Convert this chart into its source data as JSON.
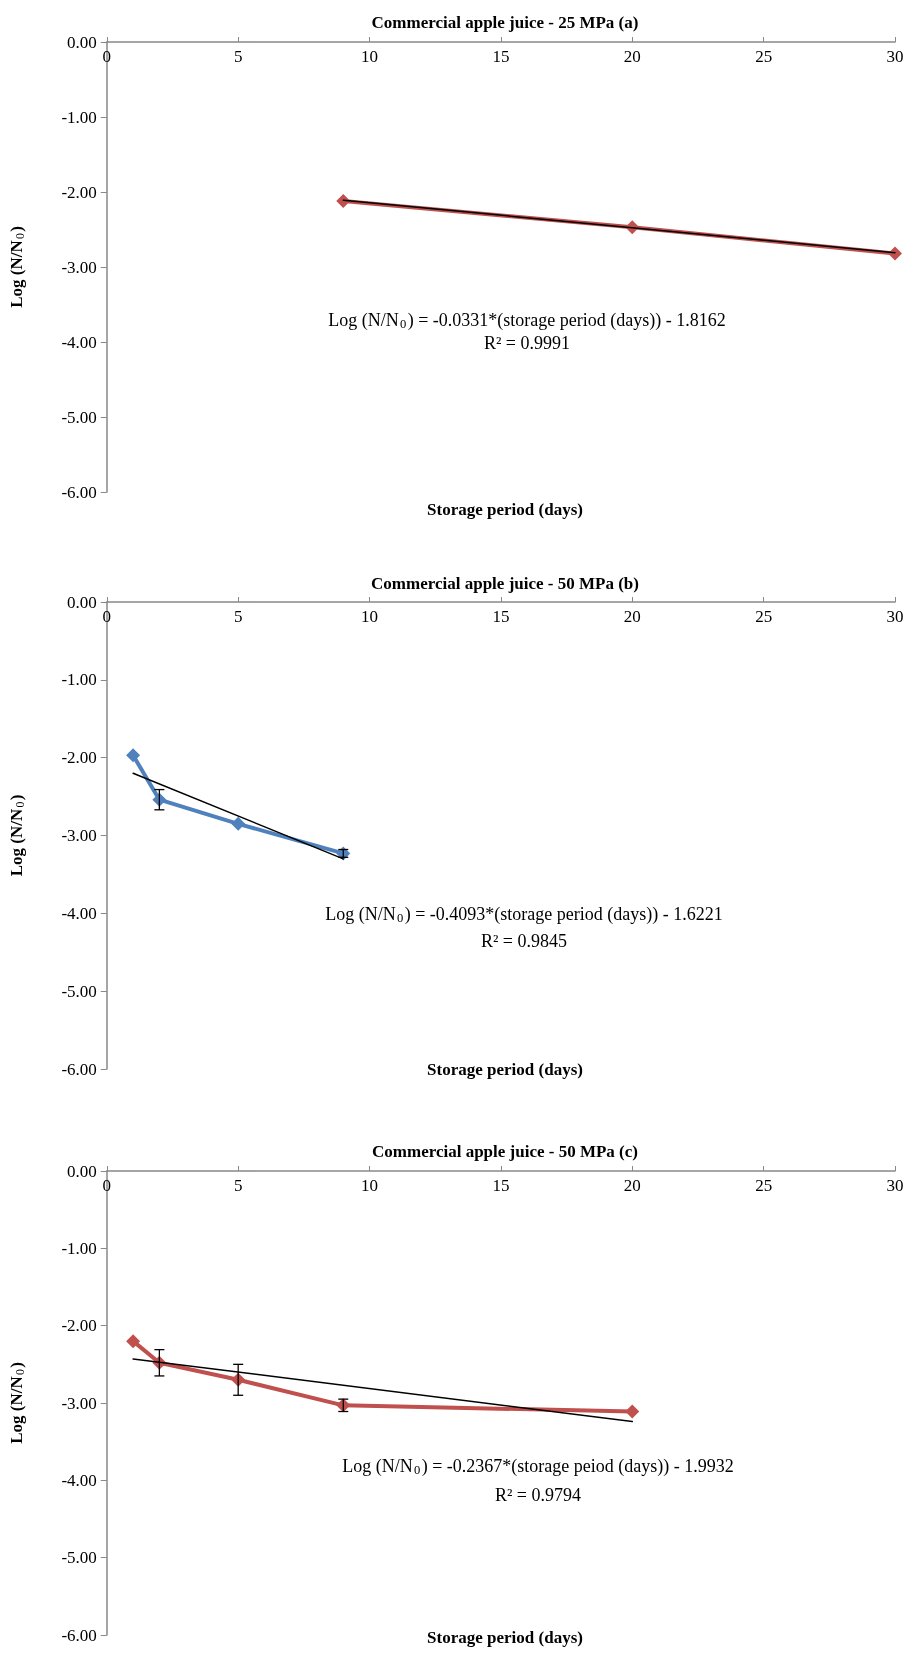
{
  "chart_data": [
    {
      "type": "line",
      "title": "Commercial apple juice - 25 MPa (a)",
      "xlabel": "Storage period (days)",
      "ylabel": "Log (N/N$_{0}$)",
      "annotations": [
        "Log (N/N$_{0}$) = -0.0331*(storage period (days)) - 1.8162",
        "R² = 0.9991"
      ],
      "xlim": [
        0,
        30
      ],
      "xticks": [
        0,
        5,
        10,
        15,
        20,
        25,
        30
      ],
      "ylim": [
        -6,
        0
      ],
      "yticks": [
        {
          "value": 0,
          "label": "0.00"
        },
        {
          "value": -1,
          "label": "-1.00"
        },
        {
          "value": -2,
          "label": "-2.00"
        },
        {
          "value": -3,
          "label": "-3.00"
        },
        {
          "value": -4,
          "label": "-4.00"
        },
        {
          "value": -5,
          "label": "-5.00"
        },
        {
          "value": -6,
          "label": "-6.00"
        }
      ],
      "marker": "diamond",
      "grid": false,
      "series": [
        {
          "color": "#c0504d",
          "x": [
            9,
            20,
            30
          ],
          "values": [
            -2.12,
            -2.47,
            -2.82
          ]
        },
        {
          "color": "#000000",
          "x": [
            9,
            30
          ],
          "values": [
            -2.11,
            -2.81
          ],
          "marker": "none"
        }
      ]
    },
    {
      "type": "line",
      "title": "Commercial apple juice - 50 MPa (b)",
      "xlabel": "Storage period (days)",
      "ylabel": "Log (N/N$_{0}$)",
      "annotations": [
        "Log (N/N$_{0}$) = -0.4093*(storage period (days)) - 1.6221",
        "R² = 0.9845"
      ],
      "xlim": [
        0,
        30
      ],
      "xticks": [
        0,
        5,
        10,
        15,
        20,
        25,
        30
      ],
      "ylim": [
        -6,
        0
      ],
      "yticks": [
        {
          "value": 0,
          "label": "0.00"
        },
        {
          "value": -1,
          "label": "-1.00"
        },
        {
          "value": -2,
          "label": "-2.00"
        },
        {
          "value": -3,
          "label": "-3.00"
        },
        {
          "value": -4,
          "label": "-4.00"
        },
        {
          "value": -5,
          "label": "-5.00"
        },
        {
          "value": -6,
          "label": "-6.00"
        }
      ],
      "marker": "diamond",
      "grid": false,
      "series": [
        {
          "color": "#4f81bd",
          "x": [
            1,
            2,
            5,
            9
          ],
          "values": [
            -1.97,
            -2.54,
            -2.85,
            -3.23
          ],
          "errors": [
            null,
            0.13,
            null,
            0.05
          ]
        },
        {
          "color": "#000000",
          "x": [
            1,
            9
          ],
          "values": [
            -2.2,
            -3.3
          ],
          "marker": "none"
        }
      ]
    },
    {
      "type": "line",
      "title": "Commercial apple juice - 50 MPa (c)",
      "xlabel": "Storage period (days)",
      "ylabel": "Log (N/N$_{0}$)",
      "annotations": [
        "Log (N/N$_{0}$) = -0.2367*(storage peiod (days)) - 1.9932",
        "R² = 0.9794"
      ],
      "xlim": [
        0,
        30
      ],
      "xticks": [
        0,
        5,
        10,
        15,
        20,
        25,
        30
      ],
      "ylim": [
        -6,
        0
      ],
      "yticks": [
        {
          "value": 0,
          "label": "0.00"
        },
        {
          "value": -1,
          "label": "-1.00"
        },
        {
          "value": -2,
          "label": "-2.00"
        },
        {
          "value": -3,
          "label": "-3.00"
        },
        {
          "value": -4,
          "label": "-4.00"
        },
        {
          "value": -5,
          "label": "-5.00"
        },
        {
          "value": -6,
          "label": "-6.00"
        }
      ],
      "marker": "diamond",
      "grid": false,
      "series": [
        {
          "color": "#c0504d",
          "x": [
            1,
            2,
            5,
            9,
            20
          ],
          "values": [
            -2.2,
            -2.48,
            -2.7,
            -3.03,
            -3.11
          ],
          "errors": [
            null,
            0.17,
            0.2,
            0.08,
            null
          ]
        },
        {
          "color": "#000000",
          "x": [
            1,
            20
          ],
          "values": [
            -2.43,
            -3.24
          ],
          "marker": "none"
        }
      ]
    }
  ]
}
